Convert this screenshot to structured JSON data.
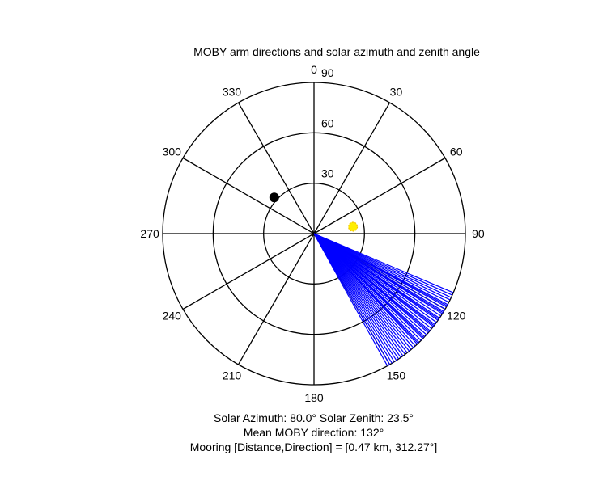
{
  "chart_data": {
    "type": "polar",
    "title": "MOBY arm directions and solar azimuth and zenith angle",
    "angle_ticks": [
      {
        "deg": 0,
        "label": "0"
      },
      {
        "deg": 30,
        "label": "30"
      },
      {
        "deg": 60,
        "label": "60"
      },
      {
        "deg": 90,
        "label": "90"
      },
      {
        "deg": 120,
        "label": "120"
      },
      {
        "deg": 150,
        "label": "150"
      },
      {
        "deg": 180,
        "label": "180"
      },
      {
        "deg": 210,
        "label": "210"
      },
      {
        "deg": 240,
        "label": "240"
      },
      {
        "deg": 270,
        "label": "270"
      },
      {
        "deg": 300,
        "label": "300"
      },
      {
        "deg": 330,
        "label": "330"
      }
    ],
    "radial_ticks": [
      {
        "value": 30,
        "label": "30"
      },
      {
        "value": 60,
        "label": "60"
      },
      {
        "value": 90,
        "label": "90"
      }
    ],
    "radial_max": 90,
    "angle_direction": "clockwise from north",
    "series": [
      {
        "kind": "arm-directions",
        "color": "#0000ff",
        "radius": 90,
        "directions_deg": [
          113,
          114,
          115,
          116,
          117,
          118,
          119,
          120,
          121,
          122,
          123,
          124,
          125,
          126,
          127,
          128,
          129,
          130,
          131,
          132,
          133,
          134,
          135,
          136,
          137,
          138,
          139,
          140,
          141,
          142,
          143,
          144,
          145,
          146,
          147,
          148,
          149,
          150,
          151,
          118.5,
          121.5,
          124.5,
          127.5,
          130.5,
          133.5,
          136.5
        ]
      },
      {
        "kind": "sun-position",
        "color": "#ffee00",
        "azimuth_deg": 80.0,
        "zenith_deg": 23.5
      },
      {
        "kind": "mooring-position",
        "color": "#000000",
        "direction_deg": 312.27,
        "radial_value": 32
      }
    ]
  },
  "footer": {
    "line1": "Solar Azimuth: 80.0°    Solar Zenith: 23.5°",
    "line2": "Mean MOBY direction: 132°",
    "line3": "Mooring [Distance,Direction] = [0.47 km, 312.27°]"
  }
}
